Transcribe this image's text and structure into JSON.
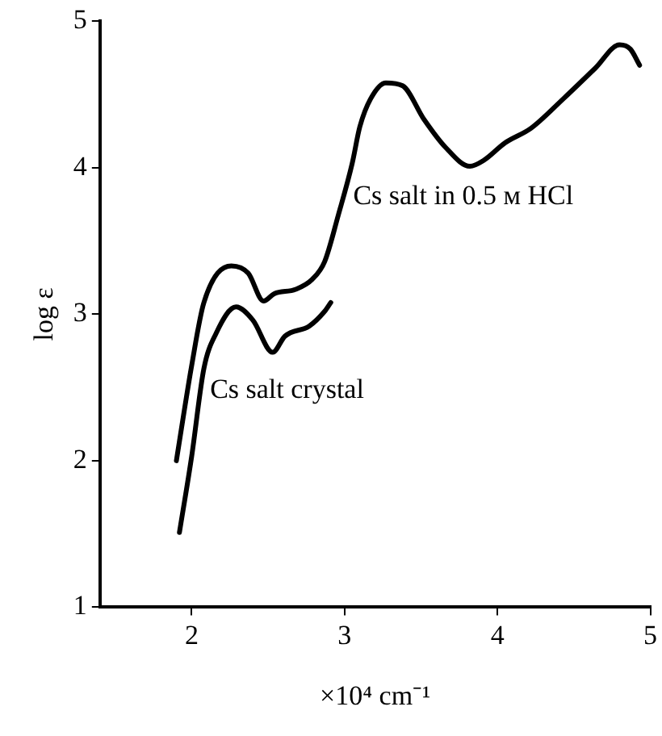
{
  "chart_data": {
    "type": "line",
    "xlabel": "×10⁴ cm⁻¹",
    "ylabel": "log ε",
    "xlim": [
      1.4,
      5
    ],
    "xticks": [
      2,
      3,
      4,
      5
    ],
    "ylim": [
      1,
      5
    ],
    "yticks": [
      1,
      2,
      3,
      4,
      5
    ],
    "grid": false,
    "legend": false,
    "marker": "none",
    "line_style": "solid",
    "series": [
      {
        "name": "Cs salt in 0.5 м HCl",
        "color": "#000000",
        "x": [
          1.9,
          2.0,
          2.08,
          2.26,
          2.37,
          2.47,
          2.54,
          2.68,
          2.79,
          2.87,
          2.96,
          3.05,
          3.1,
          3.17,
          3.27,
          3.38,
          3.52,
          3.66,
          3.82,
          3.91,
          4.05,
          4.22,
          4.43,
          4.64,
          4.8,
          4.87,
          4.93
        ],
        "values": [
          2.0,
          2.65,
          3.08,
          3.33,
          3.28,
          3.09,
          3.14,
          3.17,
          3.24,
          3.36,
          3.68,
          4.03,
          4.28,
          4.47,
          4.58,
          4.56,
          4.33,
          4.14,
          4.01,
          4.05,
          4.17,
          4.27,
          4.47,
          4.68,
          4.84,
          4.81,
          4.7
        ]
      },
      {
        "name": "Cs salt crystal",
        "color": "#000000",
        "x": [
          1.92,
          2.0,
          2.08,
          2.16,
          2.29,
          2.4,
          2.53,
          2.61,
          2.77,
          2.87,
          2.91
        ],
        "values": [
          1.51,
          2.03,
          2.63,
          2.87,
          3.05,
          2.96,
          2.74,
          2.85,
          2.92,
          3.02,
          3.08
        ]
      }
    ]
  }
}
